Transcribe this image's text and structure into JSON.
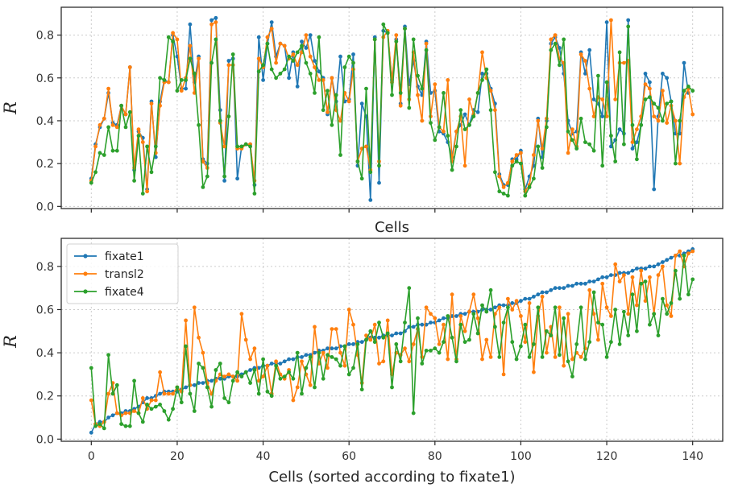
{
  "chart_data": [
    {
      "type": "line",
      "xlabel": "Cells",
      "ylabel": "R",
      "xlim": [
        -7,
        147
      ],
      "ylim": [
        -0.01,
        0.93
      ],
      "xticks": [
        0,
        20,
        40,
        60,
        80,
        100,
        120,
        140
      ],
      "show_xtick_labels": false,
      "yticks": [
        0.0,
        0.2,
        0.4,
        0.6,
        0.8
      ],
      "ytick_labels": [
        "0.0",
        "0.2",
        "0.4",
        "0.6",
        "0.8"
      ],
      "grid": true,
      "legend": false,
      "x_start": 0,
      "series": [
        {
          "name": "fixate1",
          "color": "#1f77b4",
          "values": [
            0.13,
            0.29,
            0.37,
            0.41,
            0.53,
            0.39,
            0.38,
            0.47,
            0.43,
            0.65,
            0.17,
            0.35,
            0.32,
            0.08,
            0.49,
            0.23,
            0.49,
            0.59,
            0.58,
            0.8,
            0.7,
            0.55,
            0.55,
            0.85,
            0.58,
            0.7,
            0.22,
            0.2,
            0.87,
            0.88,
            0.45,
            0.12,
            0.68,
            0.69,
            0.13,
            0.28,
            0.29,
            0.29,
            0.1,
            0.79,
            0.59,
            0.76,
            0.86,
            0.7,
            0.76,
            0.75,
            0.6,
            0.72,
            0.56,
            0.77,
            0.74,
            0.8,
            0.68,
            0.63,
            0.6,
            0.43,
            0.6,
            0.49,
            0.7,
            0.49,
            0.5,
            0.71,
            0.19,
            0.48,
            0.42,
            0.03,
            0.79,
            0.11,
            0.82,
            0.81,
            0.59,
            0.78,
            0.48,
            0.84,
            0.57,
            0.68,
            0.56,
            0.52,
            0.77,
            0.53,
            0.54,
            0.35,
            0.34,
            0.3,
            0.23,
            0.35,
            0.38,
            0.43,
            0.38,
            0.45,
            0.44,
            0.62,
            0.62,
            0.55,
            0.48,
            0.15,
            0.1,
            0.1,
            0.22,
            0.22,
            0.26,
            0.08,
            0.14,
            0.19,
            0.41,
            0.23,
            0.4,
            0.76,
            0.79,
            0.74,
            0.62,
            0.4,
            0.34,
            0.35,
            0.72,
            0.62,
            0.73,
            0.5,
            0.48,
            0.42,
            0.86,
            0.28,
            0.31,
            0.36,
            0.34,
            0.87,
            0.27,
            0.3,
            0.38,
            0.62,
            0.58,
            0.08,
            0.42,
            0.62,
            0.6,
            0.49,
            0.34,
            0.34,
            0.67,
            0.53
          ]
        },
        {
          "name": "transl2",
          "color": "#ff7f0e",
          "values": [
            0.12,
            0.28,
            0.38,
            0.41,
            0.55,
            0.38,
            0.37,
            0.47,
            0.43,
            0.65,
            0.18,
            0.36,
            0.3,
            0.07,
            0.48,
            0.25,
            0.47,
            0.58,
            0.58,
            0.81,
            0.78,
            0.54,
            0.6,
            0.75,
            0.53,
            0.69,
            0.21,
            0.18,
            0.85,
            0.86,
            0.39,
            0.28,
            0.66,
            0.66,
            0.27,
            0.27,
            0.29,
            0.29,
            0.12,
            0.69,
            0.65,
            0.79,
            0.83,
            0.67,
            0.76,
            0.75,
            0.69,
            0.71,
            0.66,
            0.72,
            0.8,
            0.7,
            0.65,
            0.59,
            0.59,
            0.44,
            0.6,
            0.45,
            0.4,
            0.53,
            0.49,
            0.64,
            0.21,
            0.27,
            0.28,
            0.17,
            0.78,
            0.21,
            0.79,
            0.82,
            0.58,
            0.8,
            0.47,
            0.83,
            0.5,
            0.72,
            0.52,
            0.4,
            0.76,
            0.42,
            0.57,
            0.37,
            0.35,
            0.59,
            0.21,
            0.35,
            0.42,
            0.19,
            0.5,
            0.43,
            0.53,
            0.72,
            0.6,
            0.54,
            0.45,
            0.14,
            0.09,
            0.11,
            0.21,
            0.24,
            0.25,
            0.07,
            0.1,
            0.24,
            0.4,
            0.27,
            0.41,
            0.78,
            0.8,
            0.69,
            0.67,
            0.25,
            0.36,
            0.28,
            0.71,
            0.68,
            0.55,
            0.42,
            0.51,
            0.5,
            0.42,
            0.87,
            0.5,
            0.67,
            0.67,
            0.68,
            0.3,
            0.36,
            0.42,
            0.57,
            0.55,
            0.42,
            0.4,
            0.54,
            0.39,
            0.47,
            0.4,
            0.2,
            0.51,
            0.55,
            0.43
          ]
        },
        {
          "name": "fixate4",
          "color": "#2ca02c",
          "values": [
            0.11,
            0.16,
            0.25,
            0.24,
            0.37,
            0.26,
            0.26,
            0.47,
            0.37,
            0.44,
            0.12,
            0.33,
            0.06,
            0.28,
            0.16,
            0.28,
            0.6,
            0.59,
            0.79,
            0.77,
            0.54,
            0.59,
            0.59,
            0.69,
            0.62,
            0.38,
            0.09,
            0.14,
            0.67,
            0.78,
            0.4,
            0.14,
            0.42,
            0.71,
            0.28,
            0.28,
            0.29,
            0.28,
            0.06,
            0.63,
            0.66,
            0.76,
            0.64,
            0.6,
            0.62,
            0.64,
            0.7,
            0.68,
            0.72,
            0.75,
            0.67,
            0.62,
            0.53,
            0.79,
            0.45,
            0.54,
            0.38,
            0.52,
            0.24,
            0.65,
            0.7,
            0.67,
            0.21,
            0.13,
            0.55,
            0.16,
            0.78,
            0.19,
            0.85,
            0.81,
            0.52,
            0.77,
            0.53,
            0.83,
            0.46,
            0.78,
            0.61,
            0.55,
            0.73,
            0.39,
            0.31,
            0.37,
            0.53,
            0.33,
            0.17,
            0.28,
            0.45,
            0.36,
            0.38,
            0.42,
            0.53,
            0.59,
            0.64,
            0.45,
            0.16,
            0.07,
            0.06,
            0.05,
            0.19,
            0.21,
            0.2,
            0.05,
            0.09,
            0.13,
            0.28,
            0.18,
            0.37,
            0.73,
            0.76,
            0.66,
            0.78,
            0.35,
            0.31,
            0.27,
            0.41,
            0.3,
            0.29,
            0.26,
            0.61,
            0.19,
            0.58,
            0.33,
            0.21,
            0.72,
            0.29,
            0.84,
            0.38,
            0.22,
            0.38,
            0.5,
            0.51,
            0.48,
            0.46,
            0.4,
            0.48,
            0.49,
            0.2,
            0.4,
            0.54,
            0.56,
            0.54
          ]
        }
      ]
    },
    {
      "type": "line",
      "xlabel": "Cells (sorted according to fixate1)",
      "ylabel": "R",
      "xlim": [
        -7,
        147
      ],
      "ylim": [
        -0.01,
        0.93
      ],
      "xticks": [
        0,
        20,
        40,
        60,
        80,
        100,
        120,
        140
      ],
      "xtick_labels": [
        "0",
        "20",
        "40",
        "60",
        "80",
        "100",
        "120",
        "140"
      ],
      "show_xtick_labels": true,
      "yticks": [
        0.0,
        0.2,
        0.4,
        0.6,
        0.8
      ],
      "ytick_labels": [
        "0.0",
        "0.2",
        "0.4",
        "0.6",
        "0.8"
      ],
      "grid": true,
      "legend": true,
      "legend_position": "top-left",
      "x_start": 0,
      "series": [
        {
          "name": "fixate1",
          "color": "#1f77b4",
          "values": [
            0.03,
            0.07,
            0.08,
            0.08,
            0.1,
            0.11,
            0.12,
            0.12,
            0.13,
            0.13,
            0.14,
            0.15,
            0.17,
            0.19,
            0.19,
            0.2,
            0.21,
            0.22,
            0.22,
            0.22,
            0.22,
            0.23,
            0.24,
            0.25,
            0.25,
            0.26,
            0.26,
            0.27,
            0.27,
            0.28,
            0.28,
            0.28,
            0.29,
            0.29,
            0.29,
            0.3,
            0.31,
            0.32,
            0.33,
            0.33,
            0.34,
            0.34,
            0.35,
            0.35,
            0.35,
            0.36,
            0.37,
            0.37,
            0.38,
            0.38,
            0.39,
            0.39,
            0.4,
            0.41,
            0.41,
            0.42,
            0.42,
            0.42,
            0.43,
            0.43,
            0.44,
            0.44,
            0.45,
            0.45,
            0.46,
            0.47,
            0.47,
            0.47,
            0.48,
            0.48,
            0.48,
            0.49,
            0.49,
            0.5,
            0.52,
            0.52,
            0.53,
            0.53,
            0.53,
            0.54,
            0.54,
            0.55,
            0.56,
            0.56,
            0.57,
            0.57,
            0.58,
            0.58,
            0.59,
            0.59,
            0.59,
            0.6,
            0.6,
            0.6,
            0.61,
            0.62,
            0.62,
            0.62,
            0.63,
            0.63,
            0.64,
            0.65,
            0.65,
            0.66,
            0.67,
            0.68,
            0.68,
            0.69,
            0.7,
            0.7,
            0.7,
            0.71,
            0.71,
            0.72,
            0.72,
            0.72,
            0.73,
            0.73,
            0.74,
            0.75,
            0.75,
            0.76,
            0.76,
            0.77,
            0.77,
            0.77,
            0.78,
            0.79,
            0.79,
            0.79,
            0.8,
            0.8,
            0.81,
            0.82,
            0.83,
            0.84,
            0.85,
            0.85,
            0.86,
            0.87,
            0.88
          ]
        },
        {
          "name": "transl2",
          "color": "#ff7f0e",
          "values": [
            0.18,
            0.07,
            0.06,
            0.08,
            0.21,
            0.26,
            0.12,
            0.11,
            0.12,
            0.12,
            0.13,
            0.12,
            0.19,
            0.14,
            0.18,
            0.18,
            0.31,
            0.21,
            0.21,
            0.21,
            0.24,
            0.22,
            0.55,
            0.25,
            0.61,
            0.47,
            0.4,
            0.26,
            0.21,
            0.27,
            0.3,
            0.29,
            0.3,
            0.29,
            0.27,
            0.58,
            0.46,
            0.37,
            0.42,
            0.27,
            0.29,
            0.34,
            0.21,
            0.36,
            0.3,
            0.28,
            0.32,
            0.18,
            0.24,
            0.36,
            0.3,
            0.25,
            0.52,
            0.35,
            0.4,
            0.33,
            0.51,
            0.51,
            0.4,
            0.34,
            0.6,
            0.53,
            0.39,
            0.26,
            0.48,
            0.46,
            0.53,
            0.35,
            0.36,
            0.55,
            0.3,
            0.4,
            0.39,
            0.42,
            0.36,
            0.44,
            0.51,
            0.38,
            0.61,
            0.58,
            0.56,
            0.44,
            0.53,
            0.37,
            0.67,
            0.37,
            0.57,
            0.5,
            0.59,
            0.67,
            0.56,
            0.37,
            0.46,
            0.38,
            0.58,
            0.61,
            0.3,
            0.65,
            0.6,
            0.64,
            0.57,
            0.45,
            0.63,
            0.31,
            0.57,
            0.66,
            0.4,
            0.52,
            0.38,
            0.61,
            0.34,
            0.58,
            0.37,
            0.4,
            0.38,
            0.42,
            0.69,
            0.58,
            0.46,
            0.72,
            0.61,
            0.57,
            0.81,
            0.73,
            0.76,
            0.58,
            0.75,
            0.62,
            0.78,
            0.64,
            0.75,
            0.58,
            0.76,
            0.8,
            0.62,
            0.57,
            0.85,
            0.87,
            0.8,
            0.86,
            0.87
          ]
        },
        {
          "name": "fixate4",
          "color": "#2ca02c",
          "values": [
            0.33,
            0.06,
            0.07,
            0.05,
            0.39,
            0.21,
            0.25,
            0.07,
            0.06,
            0.06,
            0.27,
            0.12,
            0.08,
            0.16,
            0.14,
            0.15,
            0.16,
            0.13,
            0.09,
            0.14,
            0.24,
            0.17,
            0.43,
            0.21,
            0.13,
            0.35,
            0.33,
            0.24,
            0.15,
            0.32,
            0.35,
            0.19,
            0.17,
            0.27,
            0.31,
            0.29,
            0.31,
            0.26,
            0.32,
            0.21,
            0.37,
            0.22,
            0.2,
            0.34,
            0.28,
            0.29,
            0.31,
            0.28,
            0.4,
            0.21,
            0.33,
            0.38,
            0.24,
            0.4,
            0.28,
            0.39,
            0.38,
            0.37,
            0.34,
            0.43,
            0.3,
            0.33,
            0.44,
            0.23,
            0.46,
            0.5,
            0.45,
            0.54,
            0.47,
            0.49,
            0.24,
            0.44,
            0.36,
            0.54,
            0.7,
            0.12,
            0.56,
            0.35,
            0.41,
            0.41,
            0.42,
            0.4,
            0.45,
            0.57,
            0.47,
            0.36,
            0.53,
            0.45,
            0.46,
            0.58,
            0.49,
            0.62,
            0.59,
            0.69,
            0.52,
            0.38,
            0.54,
            0.61,
            0.45,
            0.37,
            0.43,
            0.53,
            0.38,
            0.44,
            0.61,
            0.38,
            0.5,
            0.48,
            0.61,
            0.39,
            0.56,
            0.36,
            0.29,
            0.44,
            0.61,
            0.37,
            0.45,
            0.68,
            0.54,
            0.53,
            0.38,
            0.45,
            0.6,
            0.44,
            0.59,
            0.48,
            0.67,
            0.5,
            0.72,
            0.73,
            0.53,
            0.58,
            0.48,
            0.65,
            0.58,
            0.63,
            0.78,
            0.65,
            0.85,
            0.67,
            0.74
          ]
        }
      ]
    }
  ]
}
